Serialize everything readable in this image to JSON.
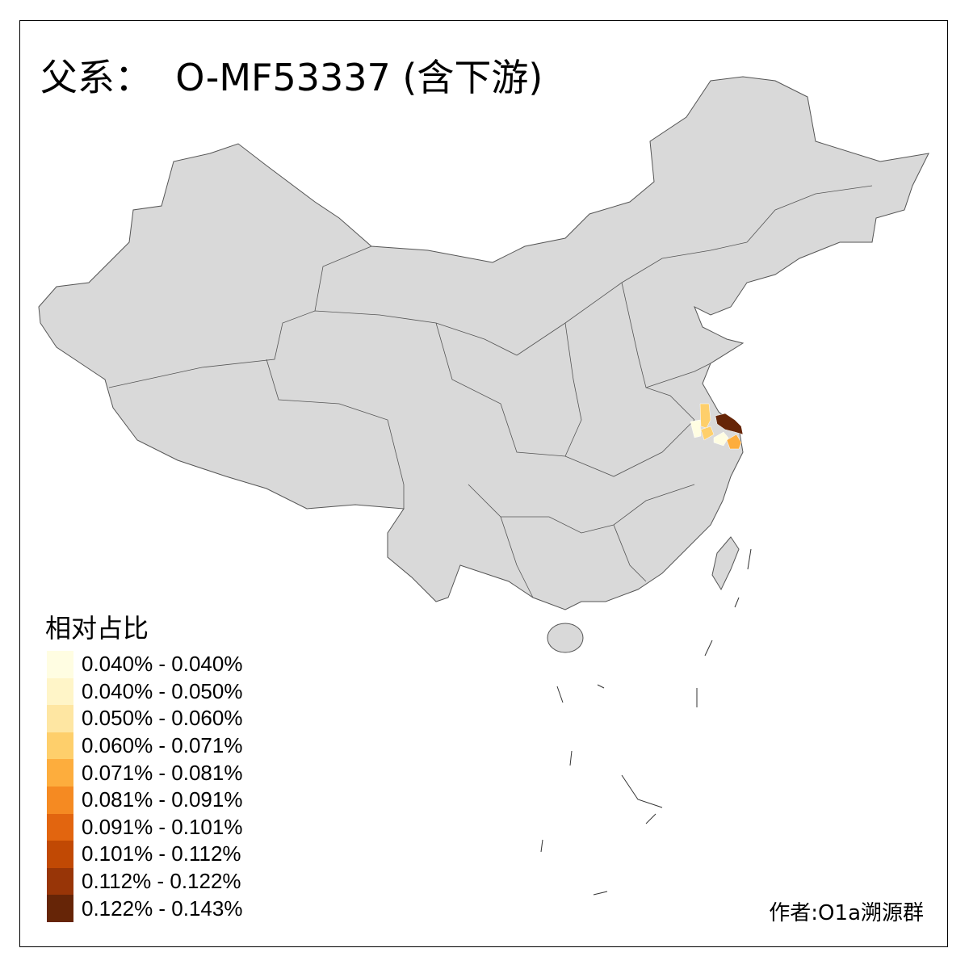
{
  "title": "父系：  O-MF53337 (含下游)",
  "legend": {
    "title": "相对占比",
    "items": [
      {
        "label": "0.040% - 0.040%",
        "color": "#fffde2"
      },
      {
        "label": "0.040% - 0.050%",
        "color": "#fff5c8"
      },
      {
        "label": "0.050% - 0.060%",
        "color": "#fee6a2"
      },
      {
        "label": "0.060% - 0.071%",
        "color": "#fecf6b"
      },
      {
        "label": "0.071% - 0.081%",
        "color": "#fdad3d"
      },
      {
        "label": "0.081% - 0.091%",
        "color": "#f58a22"
      },
      {
        "label": "0.091% - 0.101%",
        "color": "#e2650f"
      },
      {
        "label": "0.101% - 0.112%",
        "color": "#c14904"
      },
      {
        "label": "0.112% - 0.122%",
        "color": "#983507"
      },
      {
        "label": "0.122% - 0.143%",
        "color": "#662507"
      }
    ]
  },
  "credit": "作者:O1a溯源群",
  "map": {
    "base_color": "#d9d9d9",
    "border_color": "#555555"
  }
}
